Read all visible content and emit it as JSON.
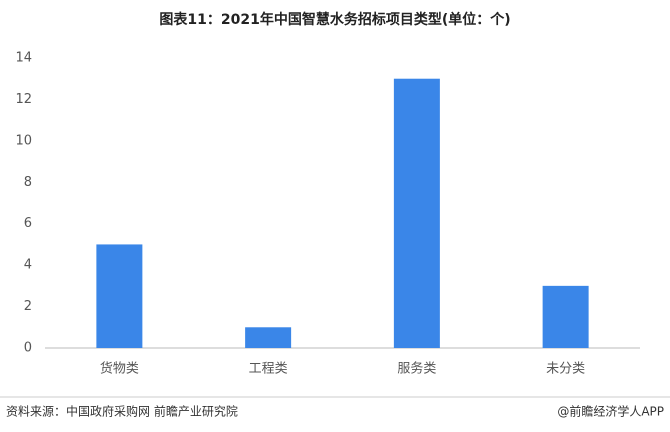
{
  "chart_data": {
    "type": "bar",
    "title": "图表11：2021年中国智慧水务招标项目类型(单位：个)",
    "categories": [
      "货物类",
      "工程类",
      "服务类",
      "未分类"
    ],
    "values": [
      5,
      1,
      13,
      3
    ],
    "color": "#3a86e8",
    "ylim": [
      0,
      14
    ],
    "yticks": [
      0,
      2,
      4,
      6,
      8,
      10,
      12,
      14
    ],
    "grid": false,
    "source": "资料来源：中国政府采购网 前瞻产业研究院",
    "credit": "@前瞻经济学人APP"
  }
}
